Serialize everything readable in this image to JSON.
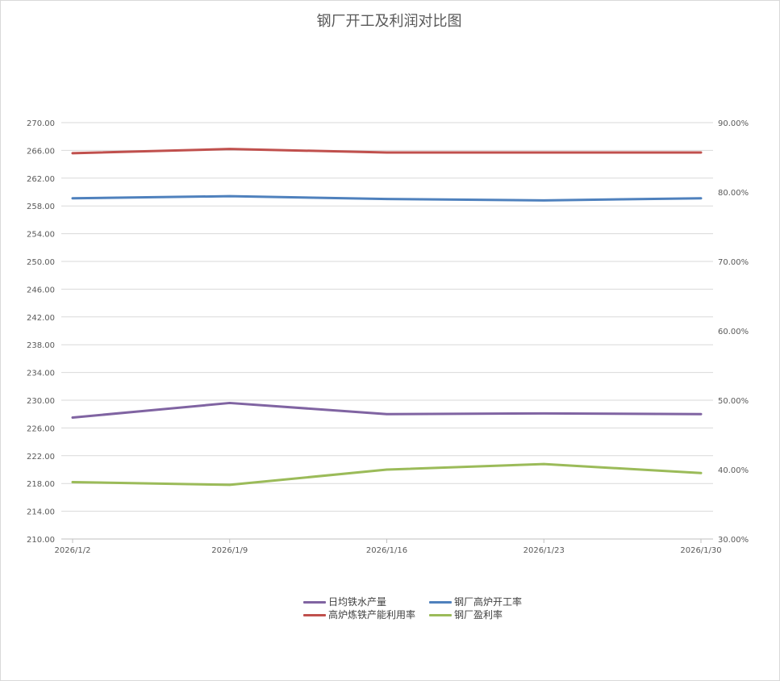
{
  "chart_data": {
    "type": "line",
    "title": "钢厂开工及利润对比图",
    "categories": [
      "2026/1/2",
      "2026/1/9",
      "2026/1/16",
      "2026/1/23",
      "2026/1/30"
    ],
    "x_dates": [
      "2026-01-02",
      "2026-01-09",
      "2026-01-16",
      "2026-01-23",
      "2026-01-30"
    ],
    "y_left": {
      "lim": [
        210,
        270
      ],
      "ticks": [
        "210.00",
        "214.00",
        "218.00",
        "222.00",
        "226.00",
        "230.00",
        "234.00",
        "238.00",
        "242.00",
        "246.00",
        "250.00",
        "254.00",
        "258.00",
        "262.00",
        "266.00",
        "270.00"
      ]
    },
    "y_right": {
      "lim": [
        30,
        90
      ],
      "ticks": [
        "30.00%",
        "40.00%",
        "50.00%",
        "60.00%",
        "70.00%",
        "80.00%",
        "90.00%"
      ]
    },
    "grid": true,
    "legend_position": "bottom",
    "series": [
      {
        "name": "日均铁水产量",
        "axis": "left",
        "color": "#8064a2",
        "values": [
          227.5,
          229.6,
          228.0,
          228.1,
          228.0
        ]
      },
      {
        "name": "钢厂高炉开工率",
        "axis": "right",
        "color": "#4f81bd",
        "values": [
          79.1,
          79.4,
          79.0,
          78.8,
          79.1
        ]
      },
      {
        "name": "高炉炼铁产能利用率",
        "axis": "right",
        "color": "#c0504d",
        "values": [
          85.6,
          86.2,
          85.7,
          85.7,
          85.7
        ]
      },
      {
        "name": "钢厂盈利率",
        "axis": "right",
        "color": "#9bbb59",
        "values": [
          38.2,
          37.8,
          40.0,
          40.8,
          39.5
        ]
      }
    ]
  }
}
